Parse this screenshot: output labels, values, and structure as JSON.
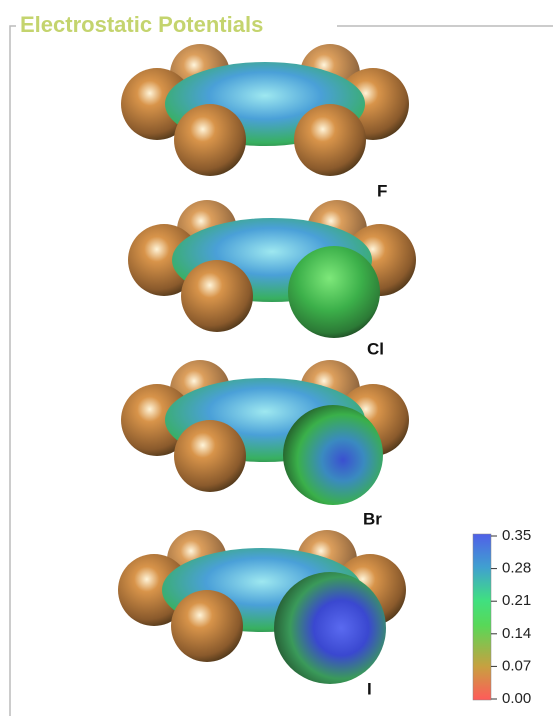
{
  "title": "Electrostatic Potentials",
  "molecules": [
    {
      "label": "F"
    },
    {
      "label": "Cl"
    },
    {
      "label": "Br"
    },
    {
      "label": "I"
    }
  ],
  "colorbar": {
    "lim": [
      0,
      0.35
    ],
    "ticks": [
      {
        "value": 0,
        "label": "0.00"
      },
      0.07,
      0.14,
      0.21,
      0.28,
      0.35
    ]
  }
}
